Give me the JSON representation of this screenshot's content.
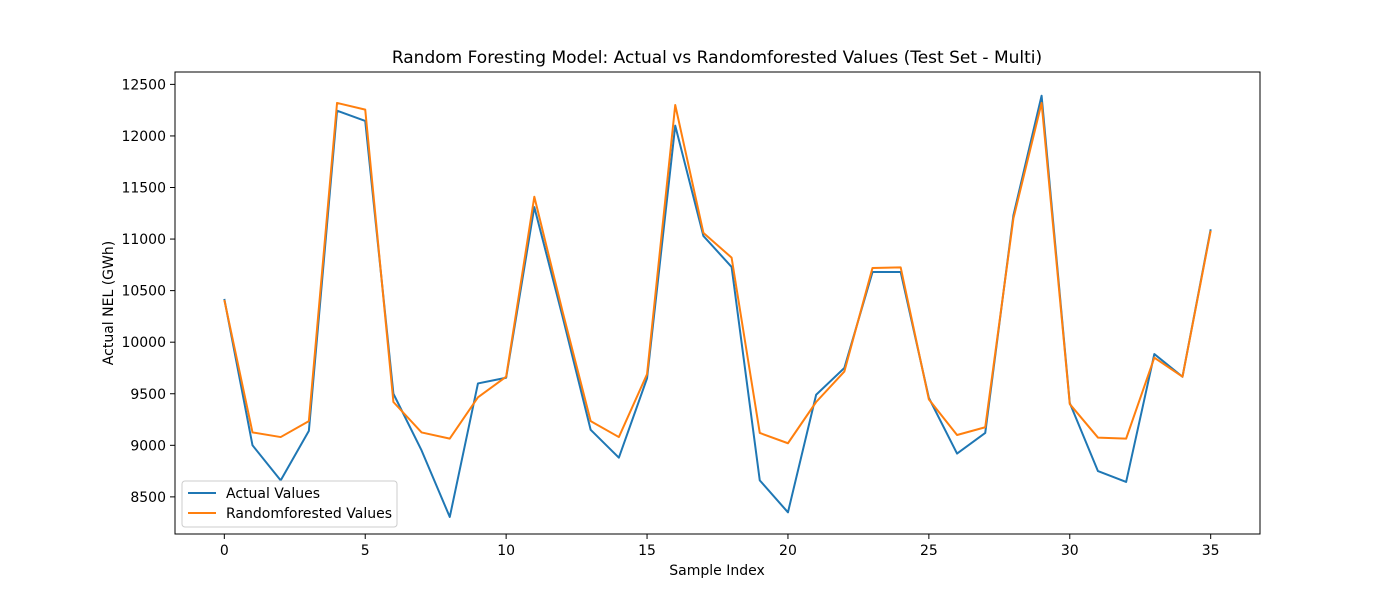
{
  "chart_data": {
    "type": "line",
    "title": "Random Foresting Model: Actual vs Randomforested Values (Test Set - Multi)",
    "xlabel": "Sample Index",
    "ylabel": "Actual NEL (GWh)",
    "xlim": [
      -1.75,
      36.75
    ],
    "ylim": [
      8140,
      12620
    ],
    "xticks": [
      0,
      5,
      10,
      15,
      20,
      25,
      30,
      35
    ],
    "yticks": [
      8500,
      9000,
      9500,
      10000,
      10500,
      11000,
      11500,
      12000,
      12500
    ],
    "grid": false,
    "legend_position": "lower-left",
    "x": [
      0,
      1,
      2,
      3,
      4,
      5,
      6,
      7,
      8,
      9,
      10,
      11,
      12,
      13,
      14,
      15,
      16,
      17,
      18,
      19,
      20,
      21,
      22,
      23,
      24,
      25,
      26,
      27,
      28,
      29,
      30,
      31,
      32,
      33,
      34,
      35
    ],
    "series": [
      {
        "name": "Actual Values",
        "color": "#1f77b4",
        "values": [
          10420,
          9000,
          8660,
          9140,
          12245,
          12145,
          9500,
          8950,
          8305,
          9600,
          9655,
          11310,
          10250,
          9150,
          8880,
          9650,
          12100,
          11030,
          10730,
          8660,
          8350,
          9490,
          9750,
          10680,
          10680,
          9460,
          8920,
          9120,
          11230,
          12390,
          9410,
          8750,
          8645,
          9885,
          9665,
          11095
        ]
      },
      {
        "name": "Randomforested Values",
        "color": "#ff7f0e",
        "values": [
          10410,
          9125,
          9080,
          9235,
          12320,
          12255,
          9420,
          9125,
          9065,
          9465,
          9665,
          11410,
          10300,
          9235,
          9080,
          9690,
          12300,
          11060,
          10820,
          9120,
          9020,
          9420,
          9715,
          10720,
          10725,
          9445,
          9100,
          9175,
          11200,
          12320,
          9400,
          9075,
          9065,
          9850,
          9665,
          11080
        ]
      }
    ]
  }
}
